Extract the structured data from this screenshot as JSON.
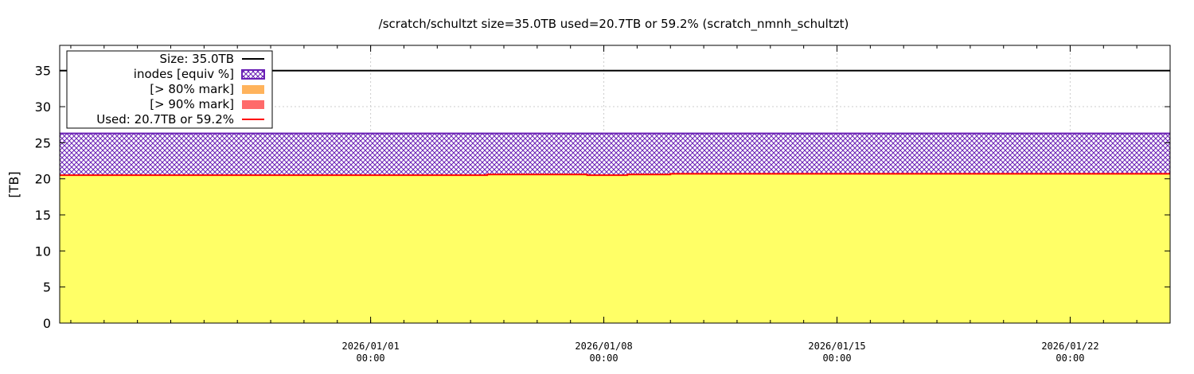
{
  "chart_data": {
    "type": "area",
    "title": "/scratch/schultzt size=35.0TB used=20.7TB or 59.2% (scratch_nmnh_schultzt)",
    "ylabel": "[TB]",
    "xlabel": "",
    "ylim": [
      0,
      38.5
    ],
    "yticks": [
      0,
      5,
      10,
      15,
      20,
      25,
      30,
      35
    ],
    "xlim": [
      "2025-12-22 16:00",
      "2026-01-25 00:00"
    ],
    "xticks": [
      {
        "x": "2026-01-01 00:00",
        "date": "2026/01/01",
        "time": "00:00"
      },
      {
        "x": "2026-01-08 00:00",
        "date": "2026/01/08",
        "time": "00:00"
      },
      {
        "x": "2026-01-15 00:00",
        "date": "2026/01/15",
        "time": "00:00"
      },
      {
        "x": "2026-01-22 00:00",
        "date": "2026/01/22",
        "time": "00:00"
      }
    ],
    "grid": true,
    "legend_position": "top-left",
    "legend": [
      {
        "label": "Size: 35.0TB",
        "kind": "line",
        "color": "#000000"
      },
      {
        "label": "inodes [equiv %]",
        "kind": "hatch",
        "color": "#7b2fbe"
      },
      {
        "label": "[> 80% mark]",
        "kind": "fill",
        "color": "#ffb35c"
      },
      {
        "label": "[> 90% mark]",
        "kind": "fill",
        "color": "#ff6a6a"
      },
      {
        "label": "Used: 20.7TB or 59.2%",
        "kind": "line",
        "color": "#ff0000"
      }
    ],
    "series": [
      {
        "name": "Size: 35.0TB",
        "type": "line",
        "color": "#000000",
        "points": [
          [
            "2025-12-22 16:00",
            35.0
          ],
          [
            "2026-01-25 00:00",
            35.0
          ]
        ]
      },
      {
        "name": "inodes [equiv %]",
        "type": "hatch-area",
        "color": "#6a1fb5",
        "points": [
          [
            "2025-12-22 16:00",
            26.3
          ],
          [
            "2026-01-25 00:00",
            26.3
          ]
        ]
      },
      {
        "name": "Used: 20.7TB or 59.2%",
        "type": "step-area",
        "color": "#ff0000",
        "fill": "#ffff66",
        "points": [
          [
            "2025-12-22 16:00",
            20.5
          ],
          [
            "2026-01-04 12:00",
            20.6
          ],
          [
            "2026-01-07 12:00",
            20.5
          ],
          [
            "2026-01-08 17:00",
            20.6
          ],
          [
            "2026-01-10 00:00",
            20.7
          ],
          [
            "2026-01-25 00:00",
            20.7
          ]
        ]
      }
    ]
  }
}
